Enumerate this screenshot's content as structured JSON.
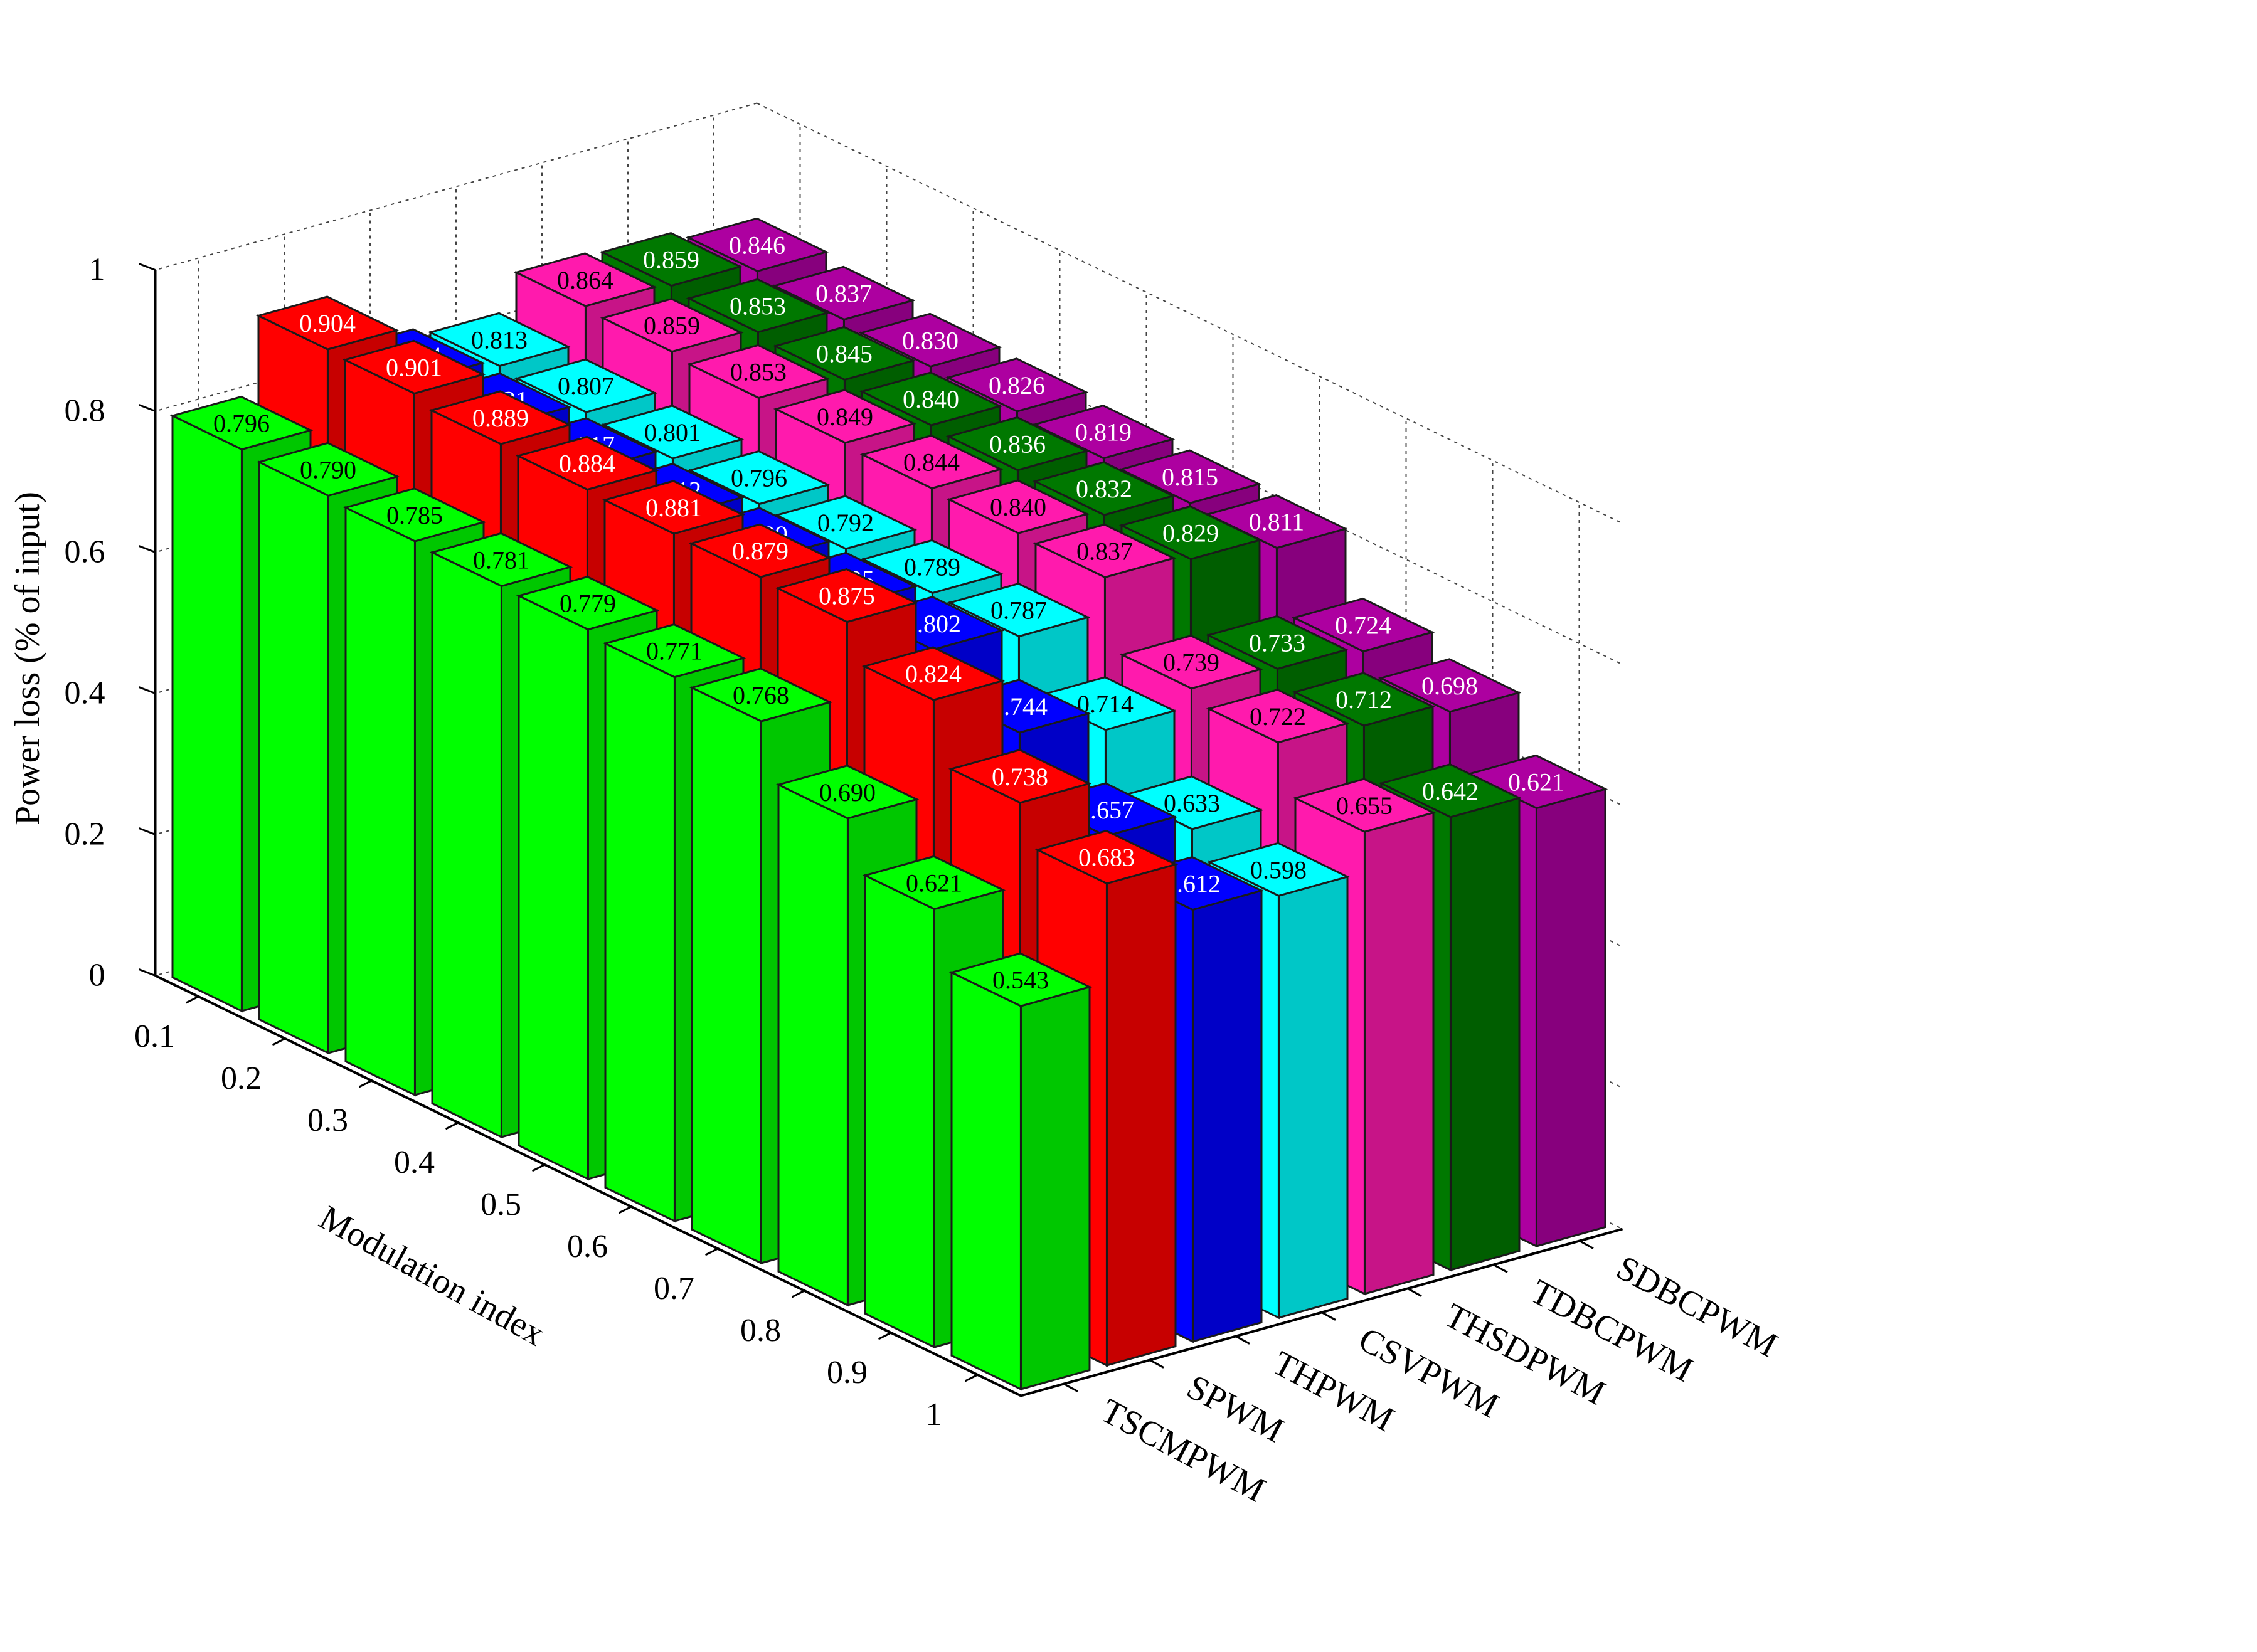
{
  "chart_data": {
    "type": "bar3d",
    "title": "",
    "zlabel": "Power loss (% of input)",
    "xlabel": "Modulation index",
    "ylabel": "",
    "zlim": [
      0,
      1
    ],
    "zticks": [
      "0",
      "0.2",
      "0.4",
      "0.6",
      "0.8",
      "1"
    ],
    "grid": true,
    "categories": [
      "0.1",
      "0.2",
      "0.3",
      "0.4",
      "0.5",
      "0.6",
      "0.7",
      "0.8",
      "0.9",
      "1"
    ],
    "series": [
      {
        "name": "TSCMPWM",
        "color": "#00ff00",
        "label_color": "#000000",
        "values": [
          0.796,
          0.79,
          0.785,
          0.781,
          0.779,
          0.771,
          0.768,
          0.69,
          0.621,
          0.543
        ]
      },
      {
        "name": "SPWM",
        "color": "#ff0000",
        "label_color": "#ffffff",
        "values": [
          0.904,
          0.901,
          0.889,
          0.884,
          0.881,
          0.879,
          0.875,
          0.824,
          0.738,
          0.683
        ]
      },
      {
        "name": "THPWM",
        "color": "#0000ff",
        "label_color": "#ffffff",
        "values": [
          0.824,
          0.821,
          0.817,
          0.812,
          0.809,
          0.805,
          0.802,
          0.744,
          0.657,
          0.612
        ]
      },
      {
        "name": "CSVPWM",
        "color": "#00ffff",
        "label_color": "#000000",
        "values": [
          0.813,
          0.807,
          0.801,
          0.796,
          0.792,
          0.789,
          0.787,
          0.714,
          0.633,
          0.598
        ]
      },
      {
        "name": "THSDPWM",
        "color": "#ff1aad",
        "label_color": "#000000",
        "values": [
          0.864,
          0.859,
          0.853,
          0.849,
          0.844,
          0.84,
          0.837,
          0.739,
          0.722,
          0.655
        ]
      },
      {
        "name": "TDBCPWM",
        "color": "#007800",
        "label_color": "#ffffff",
        "values": [
          0.859,
          0.853,
          0.845,
          0.84,
          0.836,
          0.832,
          0.829,
          0.733,
          0.712,
          0.642
        ]
      },
      {
        "name": "SDBCPWM",
        "color": "#ad00a0",
        "label_color": "#ffffff",
        "values": [
          0.846,
          0.837,
          0.83,
          0.826,
          0.819,
          0.815,
          0.811,
          0.724,
          0.698,
          0.621
        ]
      }
    ]
  }
}
